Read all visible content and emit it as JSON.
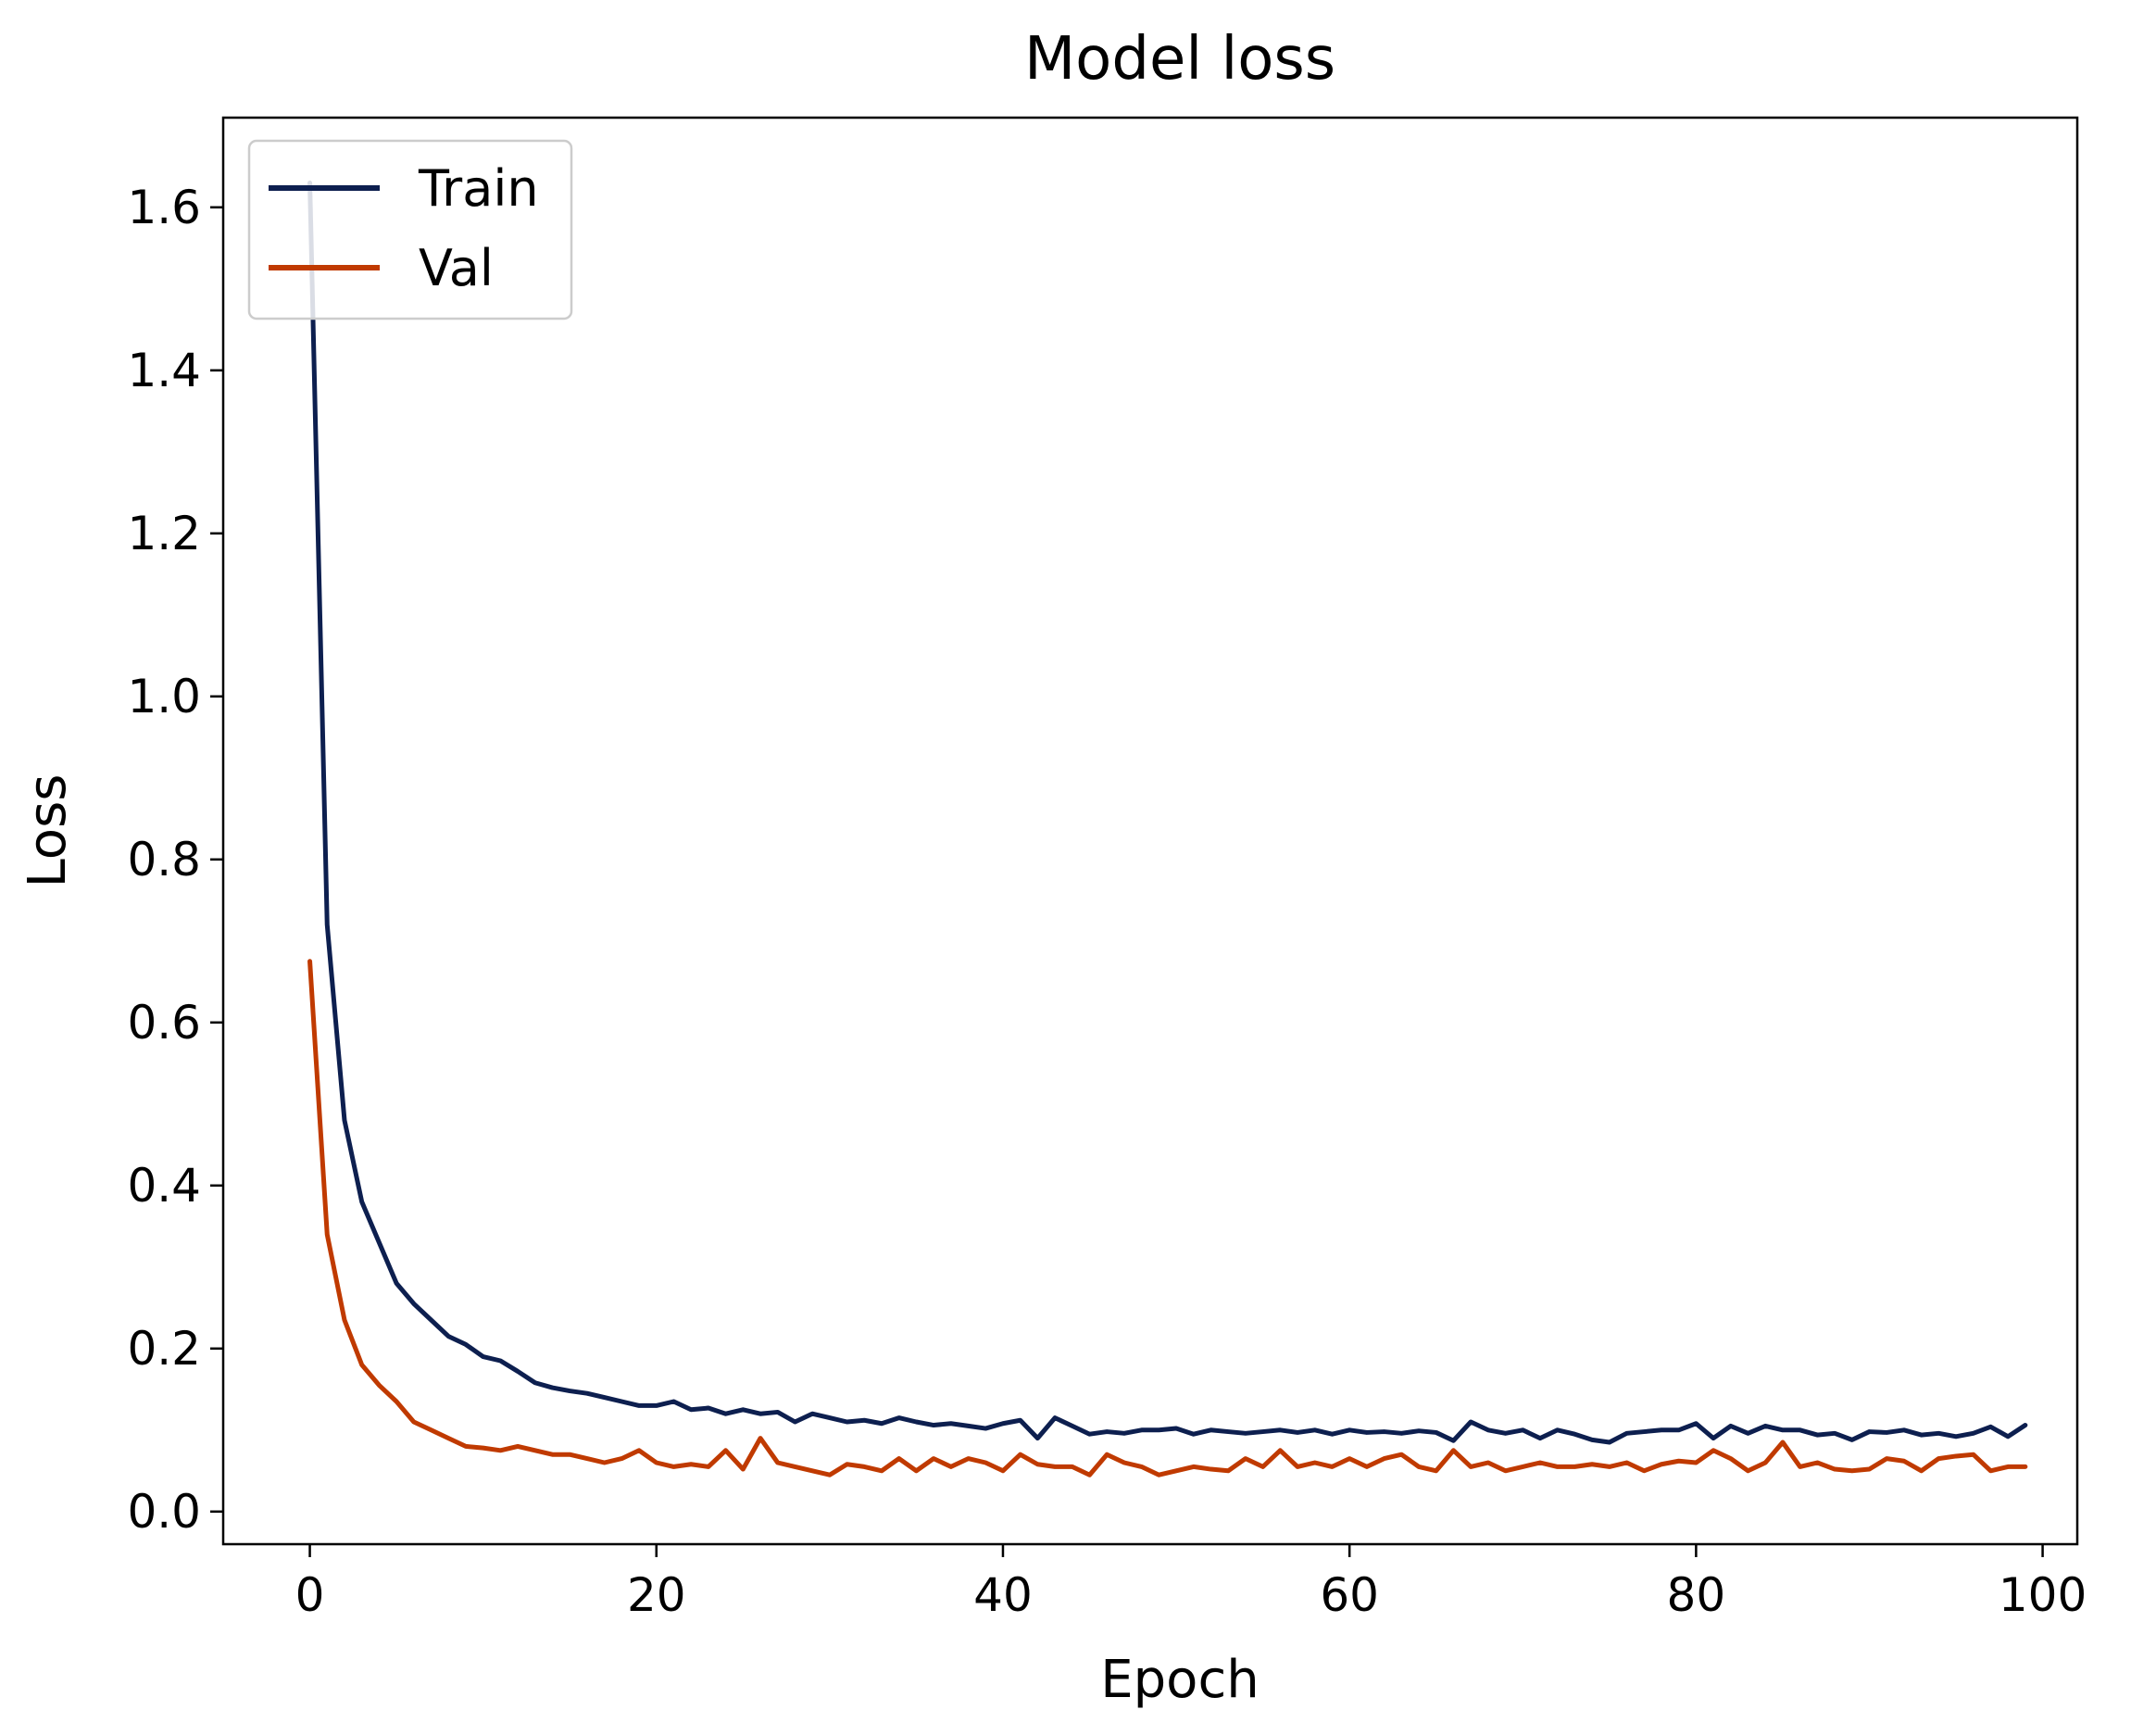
{
  "chart_data": {
    "type": "line",
    "title": "Model loss",
    "xlabel": "Epoch",
    "ylabel": "Loss",
    "xlim": [
      -5,
      102
    ],
    "ylim": [
      -0.04,
      1.71
    ],
    "xticks": [
      0,
      20,
      40,
      60,
      80,
      100
    ],
    "xtick_labels": [
      "0",
      "20",
      "40",
      "60",
      "80",
      "100"
    ],
    "yticks": [
      0.0,
      0.2,
      0.4,
      0.6,
      0.8,
      1.0,
      1.2,
      1.4,
      1.6
    ],
    "ytick_labels": [
      "0.0",
      "0.2",
      "0.4",
      "0.6",
      "0.8",
      "1.0",
      "1.2",
      "1.4",
      "1.6"
    ],
    "grid": false,
    "legend_position": "top-left",
    "x": [
      0,
      1,
      2,
      3,
      4,
      5,
      6,
      7,
      8,
      9,
      10,
      11,
      12,
      13,
      14,
      15,
      16,
      17,
      18,
      19,
      20,
      21,
      22,
      23,
      24,
      25,
      26,
      27,
      28,
      29,
      30,
      31,
      32,
      33,
      34,
      35,
      36,
      37,
      38,
      39,
      40,
      41,
      42,
      43,
      44,
      45,
      46,
      47,
      48,
      49,
      50,
      51,
      52,
      53,
      54,
      55,
      56,
      57,
      58,
      59,
      60,
      61,
      62,
      63,
      64,
      65,
      66,
      67,
      68,
      69,
      70,
      71,
      72,
      73,
      74,
      75,
      76,
      77,
      78,
      79,
      80,
      81,
      82,
      83,
      84,
      85,
      86,
      87,
      88,
      89,
      90,
      91,
      92,
      93,
      94,
      95,
      96,
      97,
      98,
      99
    ],
    "series": [
      {
        "name": "Train",
        "color": "#0d1f4f",
        "values": [
          1.63,
          0.72,
          0.48,
          0.38,
          0.33,
          0.28,
          0.255,
          0.235,
          0.215,
          0.205,
          0.19,
          0.185,
          0.172,
          0.158,
          0.152,
          0.148,
          0.145,
          0.14,
          0.135,
          0.13,
          0.13,
          0.135,
          0.125,
          0.127,
          0.12,
          0.125,
          0.12,
          0.122,
          0.11,
          0.12,
          0.115,
          0.11,
          0.112,
          0.108,
          0.115,
          0.11,
          0.106,
          0.108,
          0.105,
          0.102,
          0.108,
          0.112,
          0.09,
          0.115,
          0.105,
          0.095,
          0.098,
          0.096,
          0.1,
          0.1,
          0.102,
          0.095,
          0.1,
          0.098,
          0.096,
          0.098,
          0.1,
          0.097,
          0.1,
          0.095,
          0.1,
          0.097,
          0.098,
          0.096,
          0.099,
          0.097,
          0.087,
          0.11,
          0.1,
          0.096,
          0.1,
          0.09,
          0.1,
          0.095,
          0.088,
          0.085,
          0.096,
          0.098,
          0.1,
          0.1,
          0.108,
          0.09,
          0.105,
          0.096,
          0.105,
          0.1,
          0.1,
          0.094,
          0.096,
          0.088,
          0.098,
          0.097,
          0.1,
          0.094,
          0.096,
          0.092,
          0.096,
          0.104,
          0.092,
          0.106
        ]
      },
      {
        "name": "Val",
        "color": "#c03a00",
        "values": [
          0.675,
          0.34,
          0.235,
          0.18,
          0.155,
          0.135,
          0.11,
          0.1,
          0.09,
          0.08,
          0.078,
          0.075,
          0.08,
          0.075,
          0.07,
          0.07,
          0.065,
          0.06,
          0.065,
          0.075,
          0.06,
          0.055,
          0.058,
          0.055,
          0.075,
          0.052,
          0.09,
          0.06,
          0.055,
          0.05,
          0.045,
          0.058,
          0.055,
          0.05,
          0.065,
          0.05,
          0.065,
          0.055,
          0.065,
          0.06,
          0.05,
          0.07,
          0.058,
          0.055,
          0.055,
          0.045,
          0.07,
          0.06,
          0.055,
          0.045,
          0.05,
          0.055,
          0.052,
          0.05,
          0.065,
          0.055,
          0.075,
          0.055,
          0.06,
          0.055,
          0.065,
          0.055,
          0.065,
          0.07,
          0.055,
          0.05,
          0.075,
          0.055,
          0.06,
          0.05,
          0.055,
          0.06,
          0.055,
          0.055,
          0.058,
          0.055,
          0.06,
          0.05,
          0.058,
          0.062,
          0.06,
          0.075,
          0.065,
          0.05,
          0.06,
          0.085,
          0.055,
          0.06,
          0.052,
          0.05,
          0.052,
          0.065,
          0.062,
          0.05,
          0.065,
          0.068,
          0.07,
          0.05,
          0.055,
          0.055
        ]
      }
    ]
  }
}
